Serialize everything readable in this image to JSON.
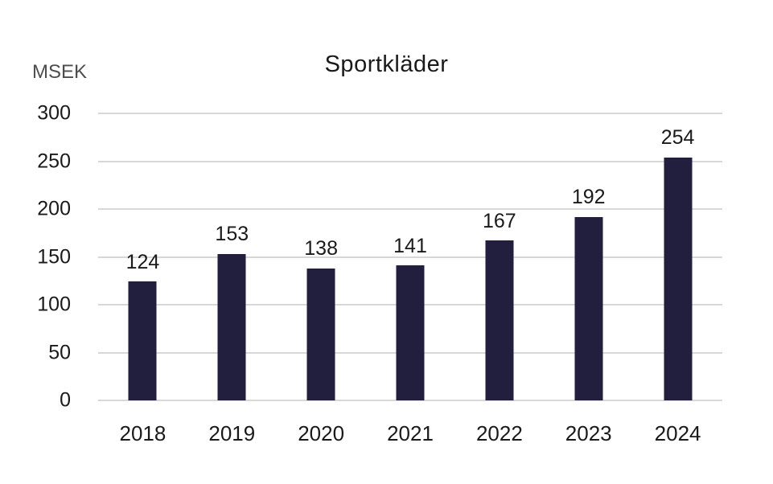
{
  "chart_data": {
    "type": "bar",
    "title": "Sportkläder",
    "ylabel": "MSEK",
    "xlabel": "",
    "categories": [
      "2018",
      "2019",
      "2020",
      "2021",
      "2022",
      "2023",
      "2024"
    ],
    "values": [
      124,
      153,
      138,
      141,
      167,
      192,
      254
    ],
    "yticks": [
      0,
      50,
      100,
      150,
      200,
      250,
      300
    ],
    "ylim": [
      0,
      300
    ],
    "grid": true,
    "legend_position": "none",
    "data_labels_shown": true,
    "colors": {
      "bar": "#221e3e",
      "grid": "#d8d8d8",
      "text": "#1a1a1a",
      "unit_text": "#4d4d4d",
      "background": "#ffffff"
    }
  }
}
